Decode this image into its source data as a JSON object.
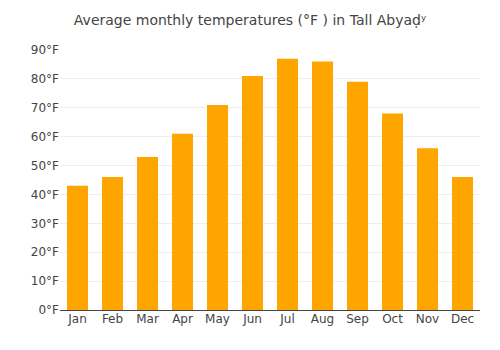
{
  "chart_data": {
    "type": "bar",
    "title": "Average monthly temperatures (°F ) in Tall Abyaḍʸ",
    "categories": [
      "Jan",
      "Feb",
      "Mar",
      "Apr",
      "May",
      "Jun",
      "Jul",
      "Aug",
      "Sep",
      "Oct",
      "Nov",
      "Dec"
    ],
    "values": [
      43,
      46,
      53,
      61,
      71,
      81,
      87,
      86,
      79,
      68,
      56,
      46
    ],
    "color": "#FFA500",
    "ylim": [
      0,
      90
    ],
    "yticks": [
      {
        "value": 0,
        "label": "0°F"
      },
      {
        "value": 10,
        "label": "10°F"
      },
      {
        "value": 20,
        "label": "20°F"
      },
      {
        "value": 30,
        "label": "30°F"
      },
      {
        "value": 40,
        "label": "40°F"
      },
      {
        "value": 50,
        "label": "50°F"
      },
      {
        "value": 60,
        "label": "60°F"
      },
      {
        "value": 70,
        "label": "70°F"
      },
      {
        "value": 80,
        "label": "80°F"
      },
      {
        "value": 90,
        "label": "90°F"
      }
    ],
    "grid": true
  }
}
